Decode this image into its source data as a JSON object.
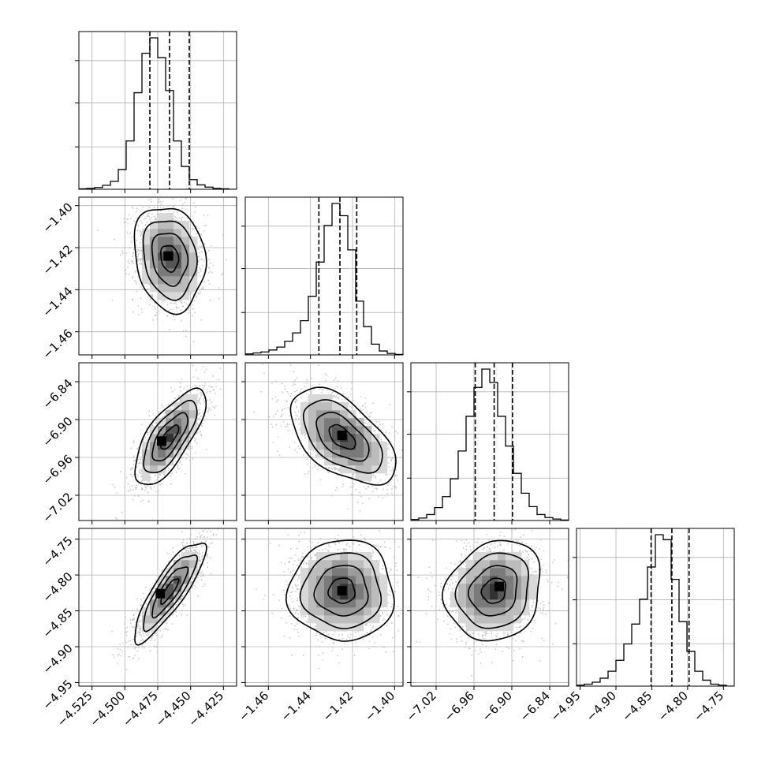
{
  "chart_data": {
    "type": "corner",
    "grid": true,
    "legend": "",
    "title": "",
    "parameters": [
      {
        "ticks": [
          -4.525,
          -4.5,
          -4.475,
          -4.45,
          -4.425
        ],
        "tick_labels": [
          "−4.525",
          "−4.500",
          "−4.475",
          "−4.450",
          "−4.425"
        ],
        "range": [
          -4.535,
          -4.415
        ],
        "quantiles": [
          -4.481,
          -4.466,
          -4.451
        ],
        "hist": {
          "edges_start": -4.535,
          "bin_width": 0.006,
          "counts": [
            1,
            2,
            4,
            9,
            18,
            45,
            110,
            220,
            310,
            345,
            300,
            225,
            110,
            52,
            22,
            10,
            5,
            2,
            1,
            0
          ]
        }
      },
      {
        "ticks": [
          -1.46,
          -1.44,
          -1.42,
          -1.4
        ],
        "tick_labels": [
          "−1.46",
          "−1.44",
          "−1.42",
          "−1.40"
        ],
        "range": [
          -1.471,
          -1.396
        ],
        "quantiles": [
          -1.436,
          -1.426,
          -1.418
        ],
        "hist": {
          "edges_start": -1.471,
          "bin_width": 0.00375,
          "counts": [
            2,
            4,
            6,
            10,
            16,
            28,
            45,
            70,
            120,
            190,
            265,
            310,
            285,
            215,
            110,
            58,
            22,
            8,
            3,
            1
          ]
        }
      },
      {
        "ticks": [
          -7.02,
          -6.96,
          -6.9,
          -6.84
        ],
        "tick_labels": [
          "−7.02",
          "−6.96",
          "−6.90",
          "−6.84"
        ],
        "range": [
          -7.06,
          -6.81
        ],
        "quantiles": [
          -6.958,
          -6.928,
          -6.899
        ],
        "hist": {
          "edges_start": -7.06,
          "bin_width": 0.0125,
          "counts": [
            2,
            5,
            12,
            26,
            48,
            84,
            140,
            210,
            268,
            305,
            278,
            210,
            150,
            95,
            55,
            28,
            12,
            6,
            3,
            1
          ]
        }
      },
      {
        "ticks": [
          -4.95,
          -4.9,
          -4.85,
          -4.8,
          -4.75
        ],
        "tick_labels": [
          "−4.95",
          "−4.90",
          "−4.85",
          "−4.80",
          "−4.75"
        ],
        "range": [
          -4.955,
          -4.735
        ],
        "quantiles": [
          -4.851,
          -4.822,
          -4.798
        ],
        "hist": {
          "edges_start": -4.955,
          "bin_width": 0.011,
          "counts": [
            2,
            4,
            8,
            16,
            30,
            52,
            85,
            125,
            175,
            240,
            305,
            295,
            215,
            130,
            70,
            30,
            12,
            4,
            2,
            0
          ]
        }
      }
    ],
    "pairs": [
      {
        "row": 1,
        "col": 0,
        "mean": [
          -4.466,
          -1.425
        ],
        "sd": [
          0.0135,
          0.0125
        ],
        "rho": -0.15,
        "peak": [
          -4.467,
          -1.424
        ]
      },
      {
        "row": 2,
        "col": 0,
        "mean": [
          -4.466,
          -6.928
        ],
        "sd": [
          0.0135,
          0.038
        ],
        "rho": 0.72,
        "peak": [
          -4.472,
          -6.934
        ]
      },
      {
        "row": 2,
        "col": 1,
        "mean": [
          -1.425,
          -6.928
        ],
        "sd": [
          0.0125,
          0.038
        ],
        "rho": -0.55,
        "peak": [
          -1.425,
          -6.925
        ]
      },
      {
        "row": 3,
        "col": 0,
        "mean": [
          -4.466,
          -4.822
        ],
        "sd": [
          0.0135,
          0.035
        ],
        "rho": 0.85,
        "peak": [
          -4.473,
          -4.826
        ]
      },
      {
        "row": 3,
        "col": 1,
        "mean": [
          -1.425,
          -4.822
        ],
        "sd": [
          0.0125,
          0.035
        ],
        "rho": 0.0,
        "peak": [
          -1.425,
          -4.822
        ]
      },
      {
        "row": 3,
        "col": 2,
        "mean": [
          -6.928,
          -4.822
        ],
        "sd": [
          0.038,
          0.035
        ],
        "rho": 0.15,
        "peak": [
          -6.92,
          -4.816
        ]
      }
    ],
    "contour_levels_sigma": [
      0.5,
      1.0,
      1.5,
      2.0
    ]
  }
}
